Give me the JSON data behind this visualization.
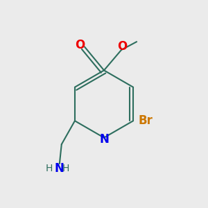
{
  "bg_color": "#ebebeb",
  "bond_color": "#2d6e5e",
  "bond_width": 1.5,
  "atom_colors": {
    "N": "#0000ee",
    "O": "#ee0000",
    "Br": "#cc7700",
    "H": "#2d6e5e"
  },
  "font_size_large": 12,
  "font_size_medium": 10,
  "font_size_small": 9
}
